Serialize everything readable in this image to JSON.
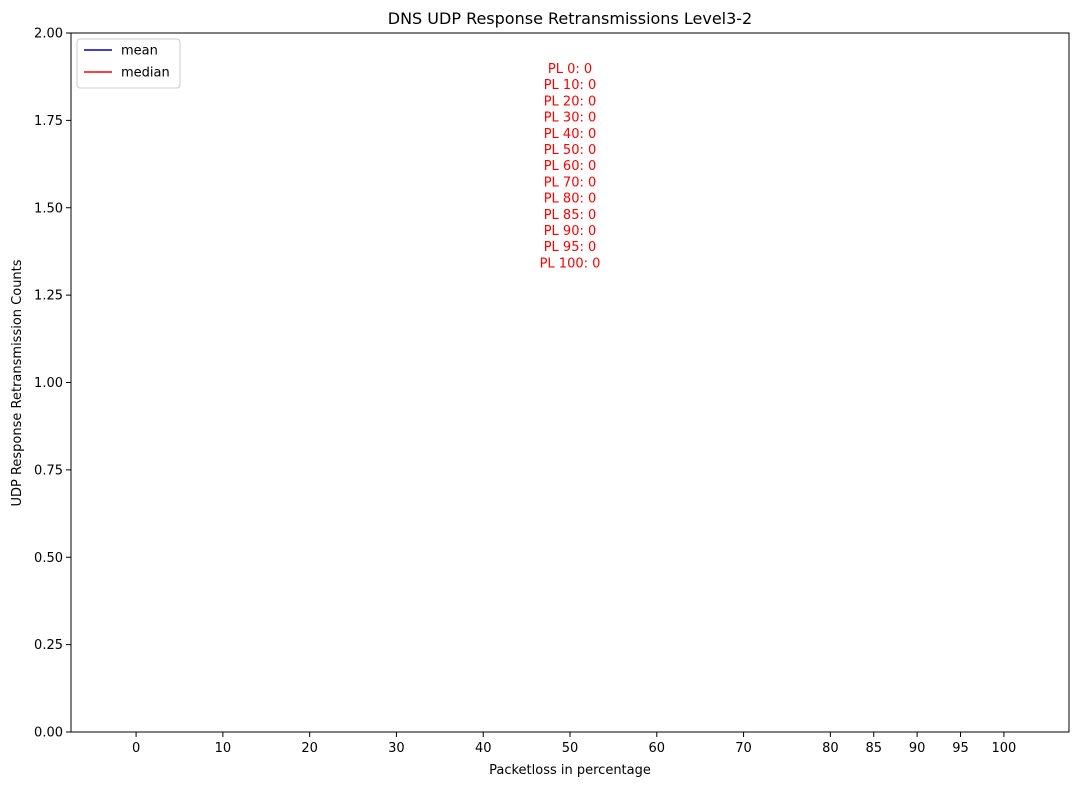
{
  "chart_data": {
    "type": "line",
    "title": "DNS UDP Response Retransmissions Level3-2",
    "xlabel": "Packetloss in percentage",
    "ylabel": "UDP Response Retransmission Counts",
    "x_ticks": [
      "0",
      "10",
      "20",
      "30",
      "40",
      "50",
      "60",
      "70",
      "80",
      "85",
      "90",
      "95",
      "100"
    ],
    "x_tick_values": [
      0,
      10,
      20,
      30,
      40,
      50,
      60,
      70,
      80,
      85,
      90,
      95,
      100
    ],
    "xlim": [
      -7.5,
      107.5
    ],
    "y_ticks": [
      "0.00",
      "0.25",
      "0.50",
      "0.75",
      "1.00",
      "1.25",
      "1.50",
      "1.75",
      "2.00"
    ],
    "y_tick_values": [
      0,
      0.25,
      0.5,
      0.75,
      1.0,
      1.25,
      1.5,
      1.75,
      2.0
    ],
    "ylim": [
      0,
      2
    ],
    "grid": false,
    "legend_position": "top-left",
    "series": [
      {
        "name": "mean",
        "color": "#0000cc",
        "values": []
      },
      {
        "name": "median",
        "color": "#ff0000",
        "values": []
      }
    ],
    "annotation_color": "#ff0000",
    "annotations": [
      "PL 0: 0",
      "PL 10: 0",
      "PL 20: 0",
      "PL 30: 0",
      "PL 40: 0",
      "PL 50: 0",
      "PL 60: 0",
      "PL 70: 0",
      "PL 80: 0",
      "PL 85: 0",
      "PL 90: 0",
      "PL 95: 0",
      "PL 100: 0"
    ],
    "annotation_anchor": {
      "x": 50,
      "y": 1.9
    }
  }
}
